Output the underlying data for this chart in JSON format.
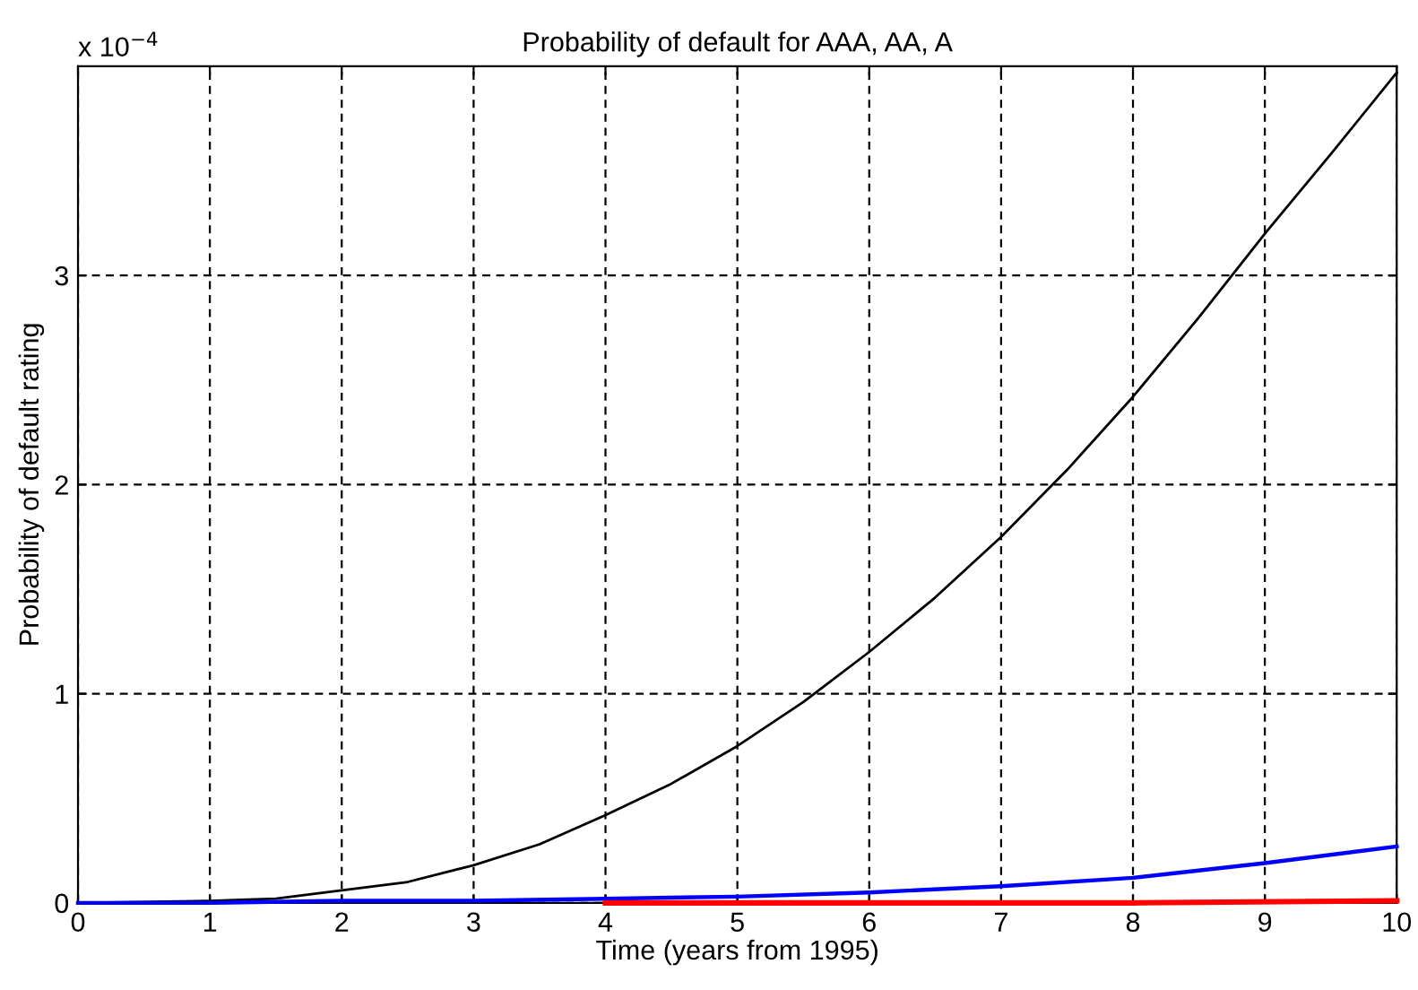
{
  "chart_data": {
    "type": "line",
    "title": "Probability of default for AAA, AA, A",
    "xlabel": "Time (years from 1995)",
    "ylabel": "Probability of default rating",
    "annotations": [
      "x 10$^{−4}$"
    ],
    "series": [
      {
        "color": "#000000",
        "x": [
          0,
          1,
          1.5,
          2,
          2.5,
          3,
          3.5,
          4,
          4.5,
          5,
          5.5,
          6,
          6.5,
          7,
          7.5,
          8,
          8.5,
          9,
          9.5,
          10
        ],
        "values": [
          0,
          0.01,
          0.02,
          0.06,
          0.1,
          0.18,
          0.28,
          0.42,
          0.57,
          0.75,
          0.96,
          1.2,
          1.46,
          1.75,
          2.07,
          2.42,
          2.8,
          3.2,
          3.58,
          3.97
        ]
      },
      {
        "color": "#0000ff",
        "x": [
          0,
          1,
          2,
          3,
          4,
          5,
          6,
          7,
          8,
          9,
          10
        ],
        "values": [
          0,
          0,
          0.01,
          0.01,
          0.02,
          0.03,
          0.05,
          0.08,
          0.12,
          0.19,
          0.27
        ]
      },
      {
        "color": "#ff0000",
        "x": [
          4,
          6,
          8,
          10
        ],
        "values": [
          0,
          0,
          0,
          0.01
        ]
      }
    ],
    "xlim": [
      0,
      10
    ],
    "xticks": [
      0,
      1,
      2,
      3,
      4,
      5,
      6,
      7,
      8,
      9,
      10
    ],
    "ylim": [
      0,
      4
    ],
    "yticks": [
      0,
      1,
      2,
      3
    ],
    "grid": true,
    "line_style": "solid",
    "marker": "none",
    "legend": false
  }
}
